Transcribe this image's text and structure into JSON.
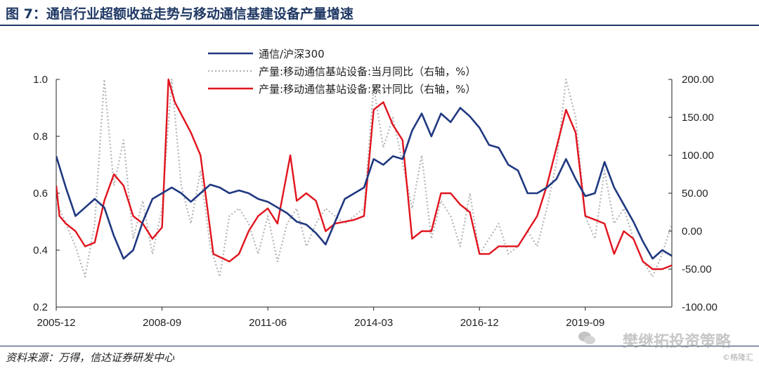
{
  "title": "图 7：通信行业超额收益走势与移动通信基建设备产量增速",
  "source": "资料来源：万得，信达证券研发中心",
  "watermark": "樊继拓投资策略",
  "watermark_logo": "©格隆汇",
  "colors": {
    "title": "#1f3864",
    "ratio": "#1f3880",
    "monthly": "#b5b5b5",
    "cumulative": "#e0141e"
  },
  "chart_data": {
    "type": "line",
    "x_tick_labels": [
      "2005-12",
      "2008-09",
      "2011-06",
      "2014-03",
      "2016-12",
      "2019-09"
    ],
    "x_range": [
      "2005-12",
      "2021-12"
    ],
    "y_left": {
      "ticks": [
        "1.0",
        "0.8",
        "0.6",
        "0.4",
        "0.2"
      ],
      "range": [
        0.2,
        1.0
      ]
    },
    "y_right": {
      "ticks": [
        "200.00",
        "150.00",
        "100.00",
        "50.00",
        "0.00",
        "-50.00",
        "-100.00"
      ],
      "range": [
        -100,
        200
      ]
    },
    "legend_position": "top-center",
    "grid": false,
    "series": [
      {
        "name": "通信/沪深300",
        "axis": "left",
        "style": "solid-thick",
        "points": [
          [
            "2005-12",
            0.73
          ],
          [
            "2006-03",
            0.62
          ],
          [
            "2006-06",
            0.52
          ],
          [
            "2006-09",
            0.55
          ],
          [
            "2006-12",
            0.58
          ],
          [
            "2007-03",
            0.55
          ],
          [
            "2007-06",
            0.45
          ],
          [
            "2007-09",
            0.37
          ],
          [
            "2007-12",
            0.4
          ],
          [
            "2008-03",
            0.5
          ],
          [
            "2008-06",
            0.58
          ],
          [
            "2008-09",
            0.6
          ],
          [
            "2008-12",
            0.62
          ],
          [
            "2009-03",
            0.6
          ],
          [
            "2009-06",
            0.57
          ],
          [
            "2009-09",
            0.6
          ],
          [
            "2009-12",
            0.63
          ],
          [
            "2010-03",
            0.62
          ],
          [
            "2010-06",
            0.6
          ],
          [
            "2010-09",
            0.61
          ],
          [
            "2010-12",
            0.6
          ],
          [
            "2011-03",
            0.58
          ],
          [
            "2011-06",
            0.57
          ],
          [
            "2011-09",
            0.55
          ],
          [
            "2011-12",
            0.53
          ],
          [
            "2012-03",
            0.5
          ],
          [
            "2012-06",
            0.49
          ],
          [
            "2012-09",
            0.46
          ],
          [
            "2012-12",
            0.42
          ],
          [
            "2013-03",
            0.5
          ],
          [
            "2013-06",
            0.58
          ],
          [
            "2013-09",
            0.6
          ],
          [
            "2013-12",
            0.62
          ],
          [
            "2014-03",
            0.72
          ],
          [
            "2014-06",
            0.7
          ],
          [
            "2014-09",
            0.73
          ],
          [
            "2014-12",
            0.72
          ],
          [
            "2015-03",
            0.82
          ],
          [
            "2015-06",
            0.88
          ],
          [
            "2015-09",
            0.8
          ],
          [
            "2015-12",
            0.88
          ],
          [
            "2016-03",
            0.85
          ],
          [
            "2016-06",
            0.9
          ],
          [
            "2016-09",
            0.87
          ],
          [
            "2016-12",
            0.83
          ],
          [
            "2017-03",
            0.77
          ],
          [
            "2017-06",
            0.76
          ],
          [
            "2017-09",
            0.7
          ],
          [
            "2017-12",
            0.68
          ],
          [
            "2018-03",
            0.6
          ],
          [
            "2018-06",
            0.6
          ],
          [
            "2018-09",
            0.62
          ],
          [
            "2018-12",
            0.65
          ],
          [
            "2019-03",
            0.72
          ],
          [
            "2019-06",
            0.65
          ],
          [
            "2019-09",
            0.59
          ],
          [
            "2019-12",
            0.6
          ],
          [
            "2020-03",
            0.71
          ],
          [
            "2020-06",
            0.62
          ],
          [
            "2020-09",
            0.56
          ],
          [
            "2020-12",
            0.5
          ],
          [
            "2021-03",
            0.43
          ],
          [
            "2021-06",
            0.37
          ],
          [
            "2021-09",
            0.4
          ],
          [
            "2021-12",
            0.38
          ]
        ]
      },
      {
        "name": "产量:移动通信基站设备:当月同比（右轴，%）",
        "axis": "right",
        "style": "dotted",
        "points": [
          [
            "2005-12",
            40
          ],
          [
            "2006-03",
            10
          ],
          [
            "2006-06",
            -20
          ],
          [
            "2006-09",
            -60
          ],
          [
            "2006-12",
            10
          ],
          [
            "2007-03",
            200
          ],
          [
            "2007-06",
            60
          ],
          [
            "2007-09",
            120
          ],
          [
            "2007-12",
            -10
          ],
          [
            "2008-03",
            40
          ],
          [
            "2008-06",
            -30
          ],
          [
            "2008-09",
            30
          ],
          [
            "2008-12",
            200
          ],
          [
            "2009-03",
            60
          ],
          [
            "2009-06",
            10
          ],
          [
            "2009-09",
            80
          ],
          [
            "2009-12",
            -20
          ],
          [
            "2010-03",
            -60
          ],
          [
            "2010-06",
            20
          ],
          [
            "2010-09",
            30
          ],
          [
            "2010-12",
            10
          ],
          [
            "2011-03",
            -30
          ],
          [
            "2011-06",
            20
          ],
          [
            "2011-09",
            -40
          ],
          [
            "2011-12",
            10
          ],
          [
            "2012-03",
            30
          ],
          [
            "2012-06",
            -20
          ],
          [
            "2012-09",
            10
          ],
          [
            "2012-12",
            30
          ],
          [
            "2013-03",
            20
          ],
          [
            "2013-06",
            10
          ],
          [
            "2013-09",
            20
          ],
          [
            "2013-12",
            30
          ],
          [
            "2014-03",
            190
          ],
          [
            "2014-06",
            110
          ],
          [
            "2014-09",
            150
          ],
          [
            "2014-12",
            90
          ],
          [
            "2015-03",
            30
          ],
          [
            "2015-06",
            100
          ],
          [
            "2015-09",
            -10
          ],
          [
            "2015-12",
            40
          ],
          [
            "2016-03",
            20
          ],
          [
            "2016-06",
            -20
          ],
          [
            "2016-09",
            50
          ],
          [
            "2016-12",
            -30
          ],
          [
            "2017-03",
            -10
          ],
          [
            "2017-06",
            10
          ],
          [
            "2017-09",
            -30
          ],
          [
            "2017-12",
            -20
          ],
          [
            "2018-03",
            0
          ],
          [
            "2018-06",
            -20
          ],
          [
            "2018-09",
            30
          ],
          [
            "2018-12",
            90
          ],
          [
            "2019-03",
            200
          ],
          [
            "2019-06",
            150
          ],
          [
            "2019-09",
            20
          ],
          [
            "2019-12",
            -10
          ],
          [
            "2020-03",
            80
          ],
          [
            "2020-06",
            10
          ],
          [
            "2020-09",
            30
          ],
          [
            "2020-12",
            -10
          ],
          [
            "2021-03",
            -40
          ],
          [
            "2021-06",
            -60
          ],
          [
            "2021-09",
            -30
          ],
          [
            "2021-12",
            10
          ]
        ]
      },
      {
        "name": "产量:移动通信基站设备:累计同比（右轴，%）",
        "axis": "right",
        "style": "solid",
        "points": [
          [
            "2005-12",
            60
          ],
          [
            "2006-01",
            20
          ],
          [
            "2006-03",
            10
          ],
          [
            "2006-06",
            0
          ],
          [
            "2006-09",
            -20
          ],
          [
            "2006-12",
            -15
          ],
          [
            "2007-03",
            40
          ],
          [
            "2007-06",
            75
          ],
          [
            "2007-09",
            60
          ],
          [
            "2007-12",
            20
          ],
          [
            "2008-03",
            10
          ],
          [
            "2008-06",
            -10
          ],
          [
            "2008-09",
            5
          ],
          [
            "2008-11",
            200
          ],
          [
            "2009-01",
            170
          ],
          [
            "2009-06",
            130
          ],
          [
            "2009-09",
            100
          ],
          [
            "2010-01",
            -30
          ],
          [
            "2010-06",
            -40
          ],
          [
            "2010-09",
            -30
          ],
          [
            "2010-12",
            0
          ],
          [
            "2011-03",
            20
          ],
          [
            "2011-06",
            30
          ],
          [
            "2011-09",
            10
          ],
          [
            "2012-01",
            100
          ],
          [
            "2012-03",
            40
          ],
          [
            "2012-06",
            50
          ],
          [
            "2012-09",
            40
          ],
          [
            "2012-12",
            0
          ],
          [
            "2013-03",
            10
          ],
          [
            "2013-09",
            15
          ],
          [
            "2013-12",
            20
          ],
          [
            "2014-03",
            160
          ],
          [
            "2014-06",
            170
          ],
          [
            "2014-09",
            140
          ],
          [
            "2014-12",
            120
          ],
          [
            "2015-03",
            -10
          ],
          [
            "2015-06",
            0
          ],
          [
            "2015-09",
            0
          ],
          [
            "2015-12",
            50
          ],
          [
            "2016-03",
            50
          ],
          [
            "2016-06",
            35
          ],
          [
            "2016-09",
            25
          ],
          [
            "2016-12",
            -30
          ],
          [
            "2017-03",
            -30
          ],
          [
            "2017-06",
            -20
          ],
          [
            "2017-09",
            -20
          ],
          [
            "2017-12",
            -20
          ],
          [
            "2018-03",
            0
          ],
          [
            "2018-06",
            20
          ],
          [
            "2018-09",
            60
          ],
          [
            "2018-12",
            110
          ],
          [
            "2019-03",
            160
          ],
          [
            "2019-06",
            130
          ],
          [
            "2019-09",
            20
          ],
          [
            "2019-12",
            15
          ],
          [
            "2020-03",
            10
          ],
          [
            "2020-06",
            -30
          ],
          [
            "2020-09",
            0
          ],
          [
            "2020-12",
            -10
          ],
          [
            "2021-03",
            -40
          ],
          [
            "2021-06",
            -50
          ],
          [
            "2021-09",
            -50
          ],
          [
            "2021-12",
            -45
          ]
        ]
      }
    ]
  }
}
